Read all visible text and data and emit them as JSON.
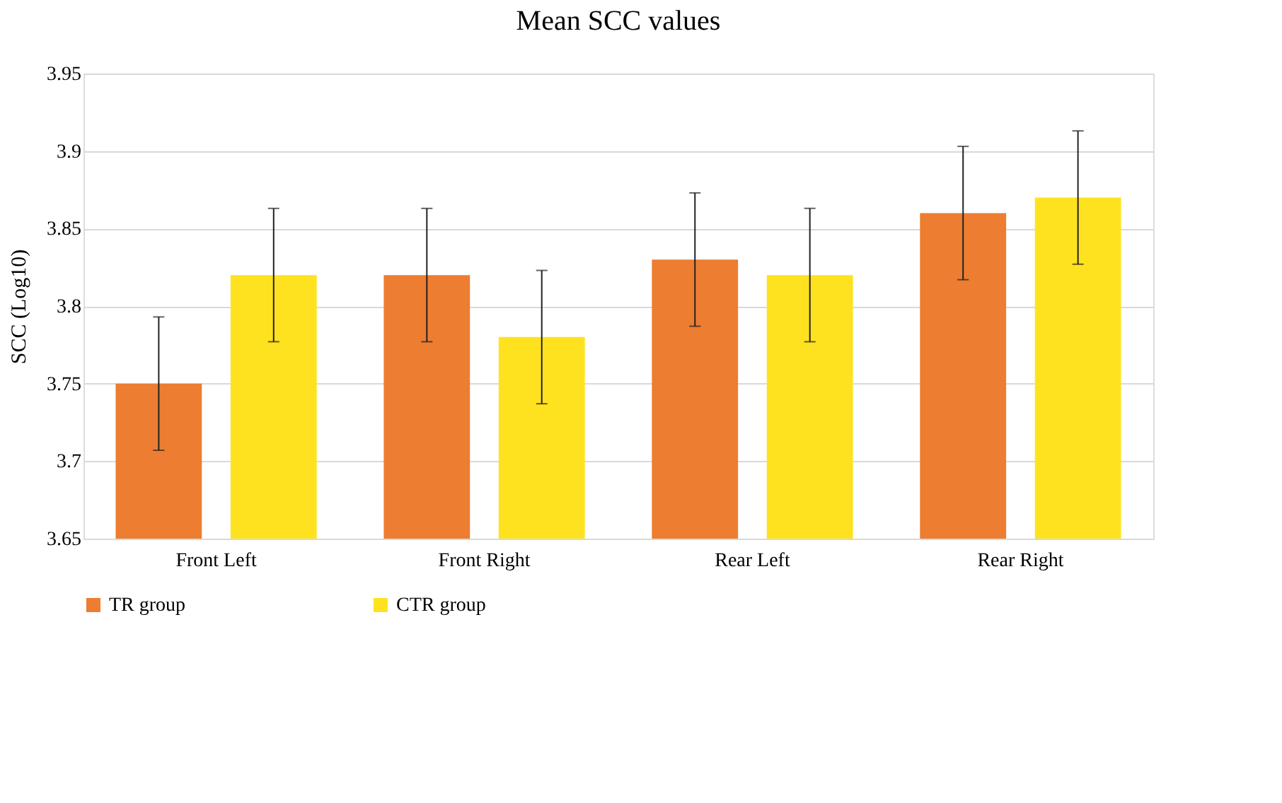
{
  "chart_data": {
    "type": "bar",
    "title": "Mean SCC values",
    "ylabel": "SCC (Log10)",
    "categories": [
      "Front Left",
      "Front Right",
      "Rear Left",
      "Rear Right"
    ],
    "series": [
      {
        "name": "TR group",
        "color": "#ed7d31",
        "values": [
          3.75,
          3.82,
          3.83,
          3.86
        ],
        "errors": [
          0.043,
          0.043,
          0.043,
          0.043
        ]
      },
      {
        "name": "CTR group",
        "color": "#ffe21f",
        "values": [
          3.82,
          3.78,
          3.82,
          3.87
        ],
        "errors": [
          0.043,
          0.043,
          0.043,
          0.043
        ]
      }
    ],
    "ylim": [
      3.65,
      3.95
    ],
    "yticks": [
      3.65,
      3.7,
      3.75,
      3.8,
      3.85,
      3.9,
      3.95
    ],
    "grid": "y",
    "legend": "bottom"
  }
}
